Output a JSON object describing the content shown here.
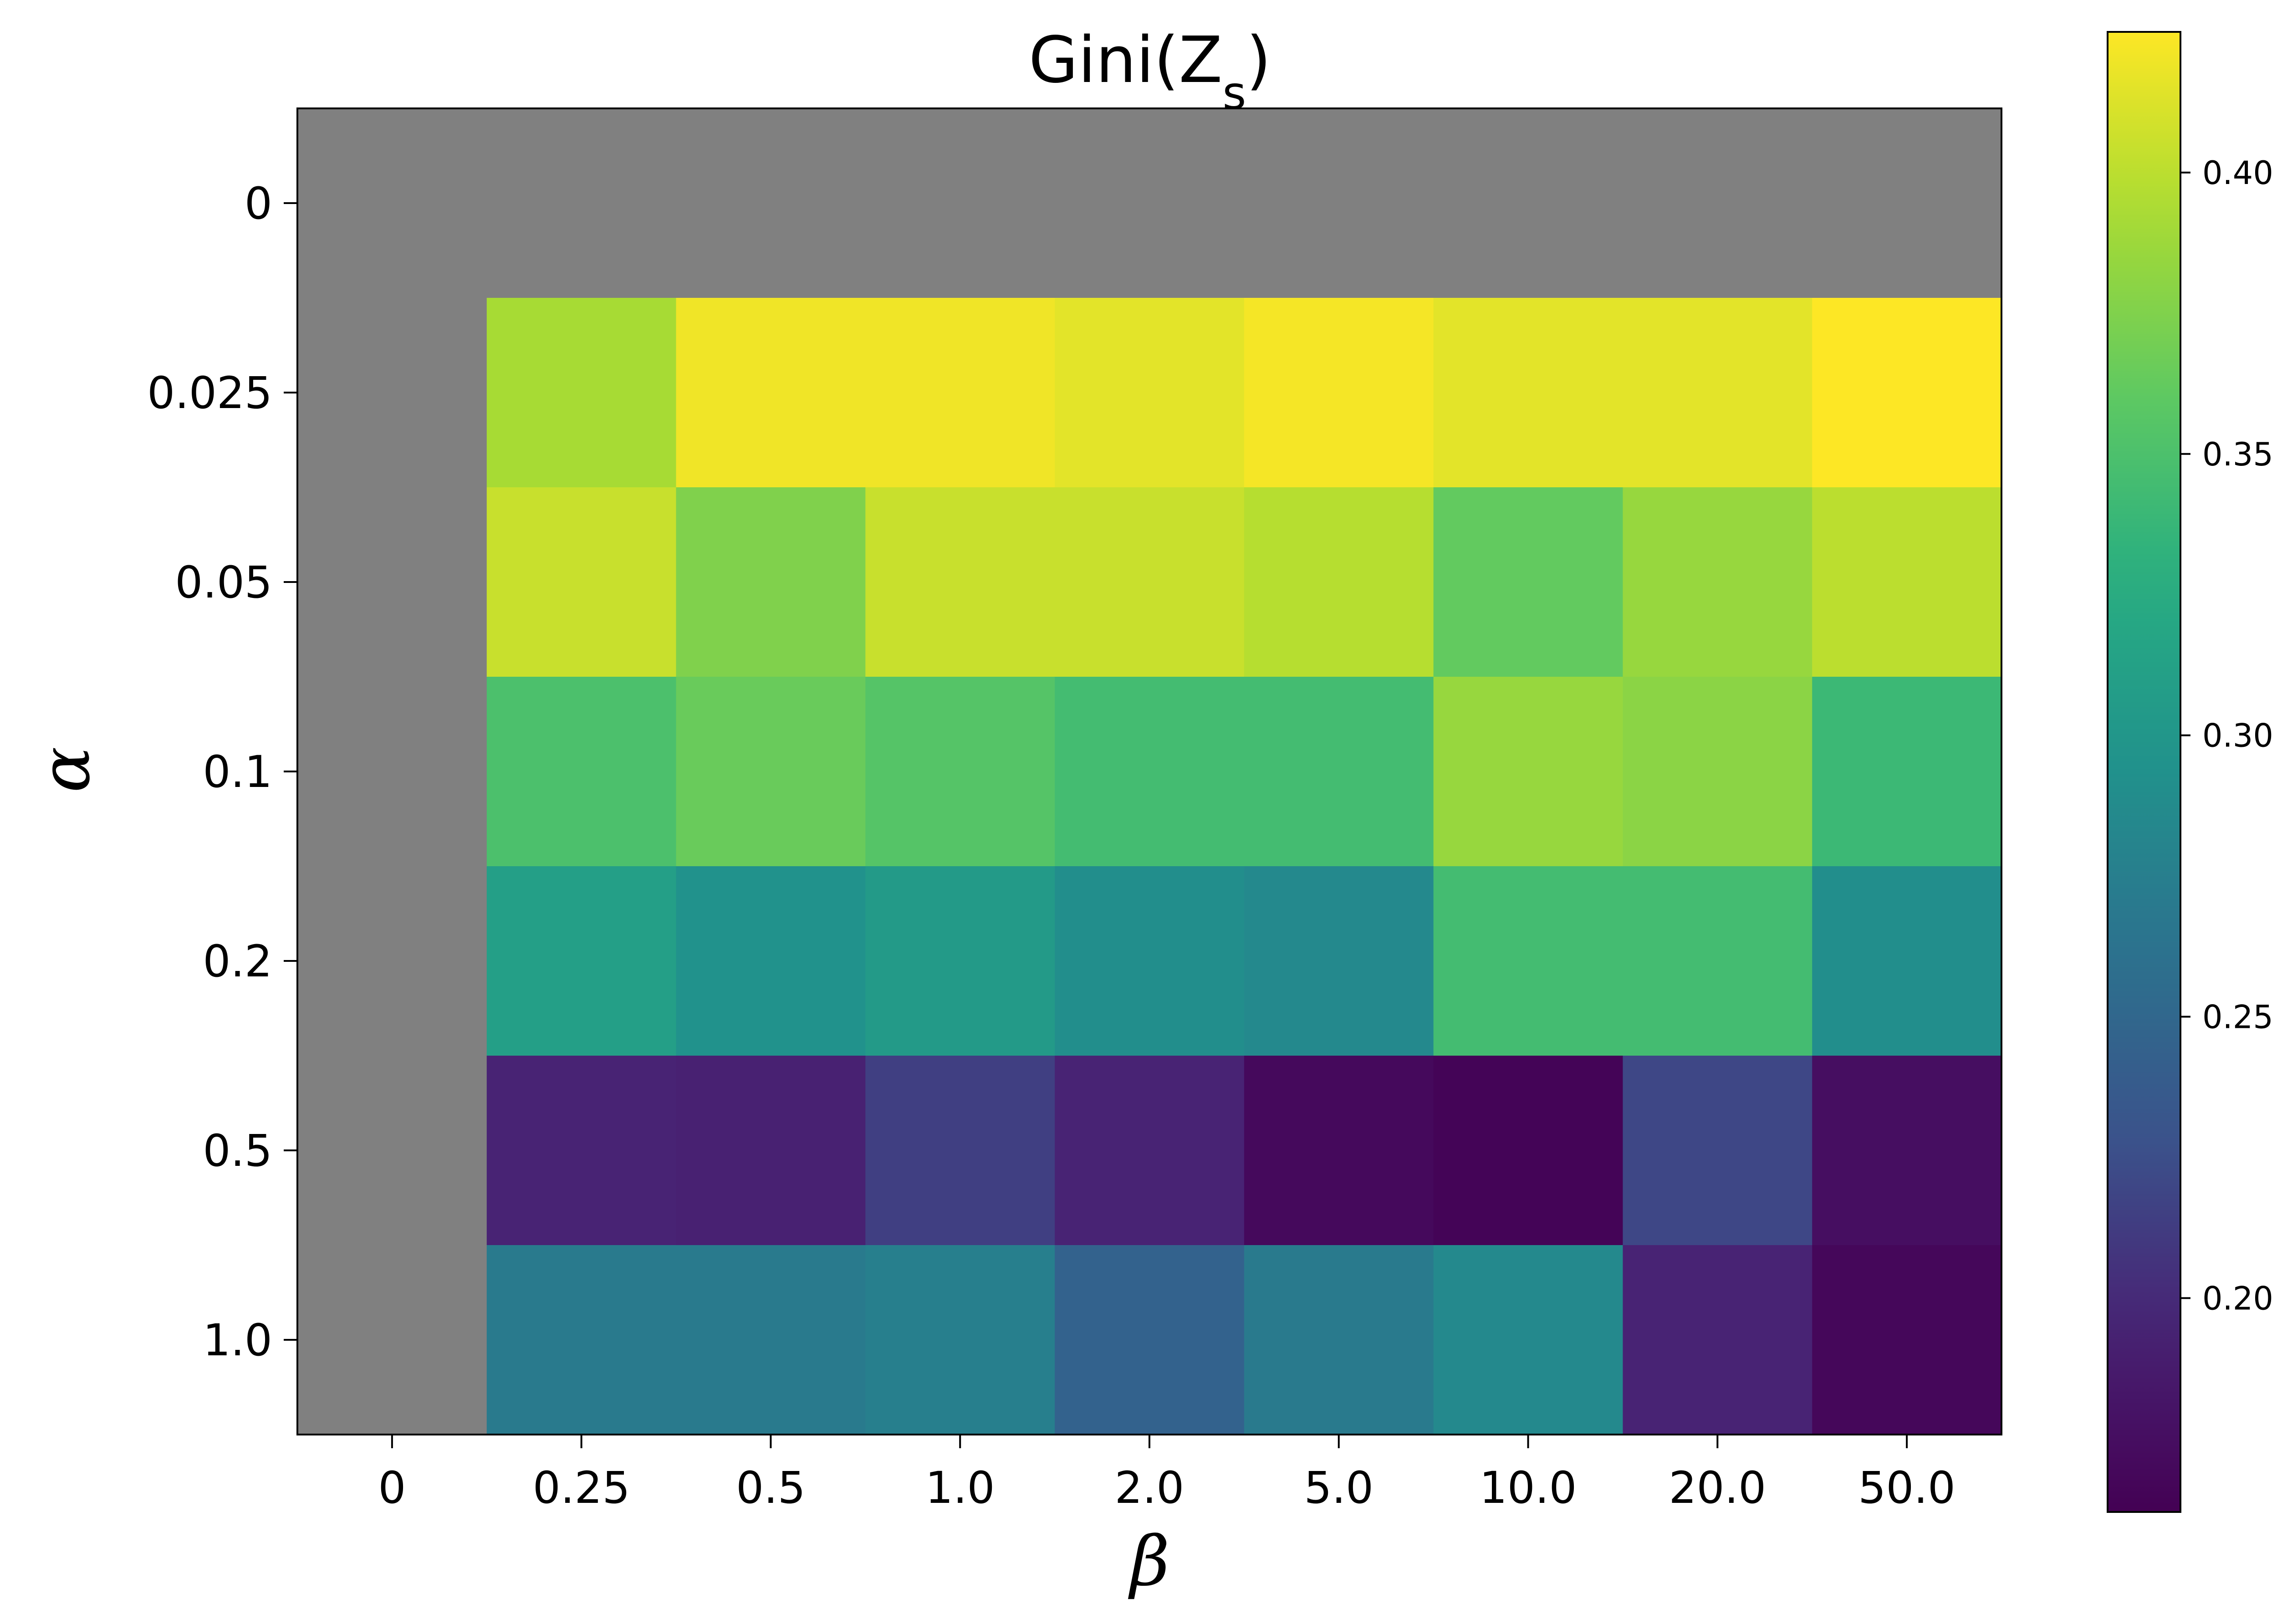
{
  "chart_data": {
    "type": "heatmap",
    "title": "Gini(Z",
    "title_subscript": "s",
    "title_suffix": ")",
    "xlabel": "β",
    "ylabel": "α",
    "x_categories": [
      "0",
      "0.25",
      "0.5",
      "1.0",
      "2.0",
      "5.0",
      "10.0",
      "20.0",
      "50.0"
    ],
    "y_categories": [
      "0",
      "0.025",
      "0.05",
      "0.1",
      "0.2",
      "0.5",
      "1.0"
    ],
    "values": [
      [
        null,
        null,
        null,
        null,
        null,
        null,
        null,
        null,
        null
      ],
      [
        null,
        0.392,
        0.42,
        0.42,
        0.415,
        0.422,
        0.415,
        0.415,
        0.425
      ],
      [
        null,
        0.405,
        0.375,
        0.405,
        0.405,
        0.398,
        0.362,
        0.385,
        0.4
      ],
      [
        null,
        0.35,
        0.365,
        0.355,
        0.345,
        0.345,
        0.385,
        0.38,
        0.34
      ],
      [
        null,
        0.31,
        0.295,
        0.305,
        0.29,
        0.285,
        0.345,
        0.345,
        0.29
      ],
      [
        null,
        0.195,
        0.193,
        0.215,
        0.195,
        0.17,
        0.165,
        0.22,
        0.175
      ],
      [
        null,
        0.27,
        0.27,
        0.275,
        0.245,
        0.27,
        0.285,
        0.195,
        0.168
      ]
    ],
    "missing_color": "#808080",
    "colorbar": {
      "colormap": "viridis",
      "vmin": 0.162,
      "vmax": 0.425,
      "ticks": [
        "0.20",
        "0.25",
        "0.30",
        "0.35",
        "0.40"
      ]
    }
  }
}
